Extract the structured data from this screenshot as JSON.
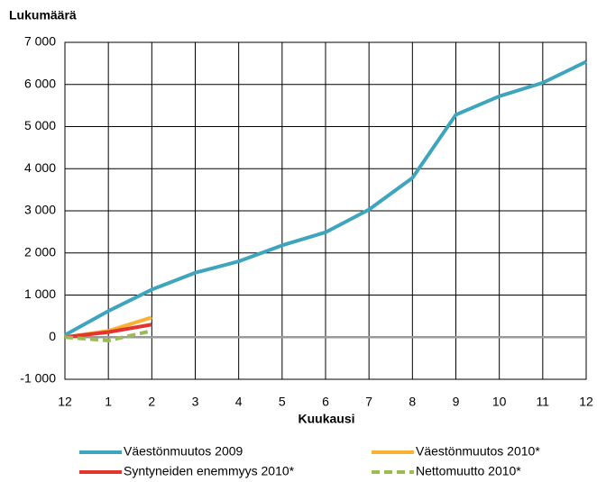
{
  "chart_data": {
    "type": "line",
    "y_label": "Lukumäärä",
    "x_label": "Kuukausi",
    "categories": [
      "12",
      "1",
      "2",
      "3",
      "4",
      "5",
      "6",
      "7",
      "8",
      "9",
      "10",
      "11",
      "12"
    ],
    "series": [
      {
        "name": "Väestönmuutos 2009",
        "color": "#3fa4bd",
        "values": [
          50,
          620,
          1130,
          1530,
          1800,
          2180,
          2490,
          3030,
          3780,
          5280,
          5720,
          6040,
          6540
        ]
      },
      {
        "name": "Väestönmuutos 2010*",
        "color": "#f9b233",
        "values": [
          0,
          150,
          470,
          null,
          null,
          null,
          null,
          null,
          null,
          null,
          null,
          null,
          null
        ]
      },
      {
        "name": "Syntyneiden enemmyys 2010*",
        "color": "#e3342f",
        "values": [
          0,
          120,
          300,
          null,
          null,
          null,
          null,
          null,
          null,
          null,
          null,
          null,
          null
        ]
      },
      {
        "name": "Nettomuutto 2010*",
        "color": "#9bbb59",
        "dashed": true,
        "values": [
          0,
          -80,
          150,
          null,
          null,
          null,
          null,
          null,
          null,
          null,
          null,
          null,
          null
        ]
      }
    ],
    "ylim": [
      -1000,
      7000
    ],
    "yticks": [
      {
        "value": -1000,
        "label": "-1 000"
      },
      0,
      {
        "value": 1000,
        "label": "1 000"
      },
      {
        "value": 2000,
        "label": "2 000"
      },
      {
        "value": 3000,
        "label": "3 000"
      },
      {
        "value": 4000,
        "label": "4 000"
      },
      {
        "value": 5000,
        "label": "5 000"
      },
      {
        "value": 6000,
        "label": "6 000"
      },
      {
        "value": 7000,
        "label": "7 000"
      }
    ],
    "grid": true
  }
}
